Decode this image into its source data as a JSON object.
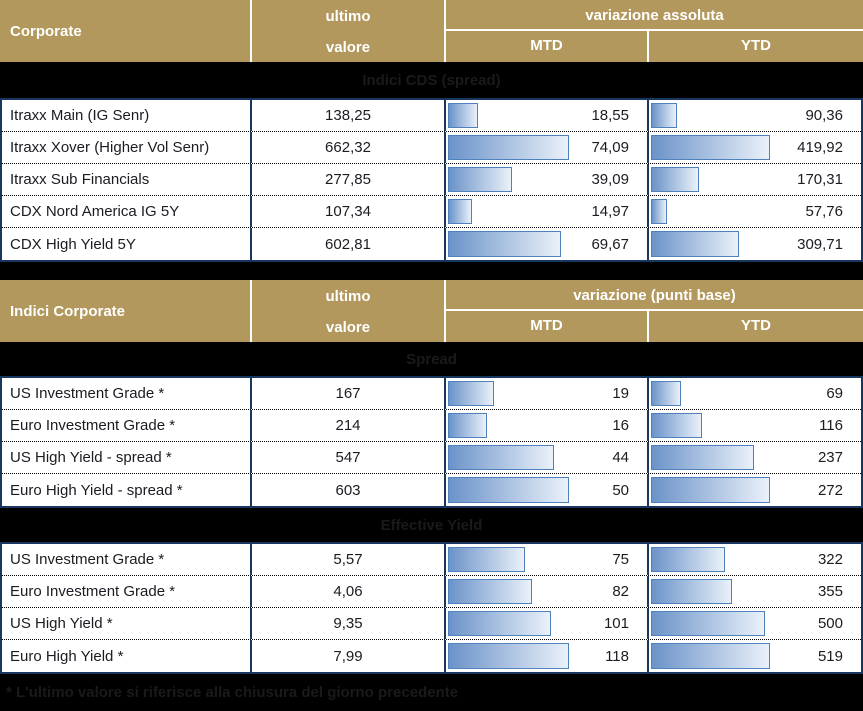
{
  "header1": {
    "title": "Corporate",
    "value_line1": "ultimo",
    "value_line2": "valore",
    "variation": "variazione assoluta",
    "mtd": "MTD",
    "ytd": "YTD"
  },
  "header2": {
    "title": "Indici Corporate",
    "value_line1": "ultimo",
    "value_line2": "valore",
    "variation": "variazione (punti base)",
    "mtd": "MTD",
    "ytd": "YTD"
  },
  "bands": {
    "cds": "Indici CDS (spread)",
    "spread": "Spread",
    "yield": "Effective Yield"
  },
  "footnote": "* L'ultimo valore si riferisce alla chiusura del giorno precedente",
  "colors": {
    "gold": "#B2985C",
    "navy": "#17375E",
    "bar-border": "#4F81BD",
    "bar-start": "#6B93C9",
    "bar-end": "#EAF1F9"
  },
  "chart_data": [
    {
      "type": "table",
      "title": "Corporate",
      "section": "Indici CDS (spread)",
      "columns": [
        "ultimo valore",
        "variazione assoluta MTD",
        "variazione assoluta YTD"
      ],
      "rows": [
        {
          "label": "Itraxx Main (IG Senr)",
          "value": "138,25",
          "mtd": "18,55",
          "mtd_num": 18.55,
          "ytd": "90,36",
          "ytd_num": 90.36
        },
        {
          "label": "Itraxx Xover (Higher Vol Senr)",
          "value": "662,32",
          "mtd": "74,09",
          "mtd_num": 74.09,
          "ytd": "419,92",
          "ytd_num": 419.92
        },
        {
          "label": "Itraxx Sub Financials",
          "value": "277,85",
          "mtd": "39,09",
          "mtd_num": 39.09,
          "ytd": "170,31",
          "ytd_num": 170.31
        },
        {
          "label": "CDX Nord America IG 5Y",
          "value": "107,34",
          "mtd": "14,97",
          "mtd_num": 14.97,
          "ytd": "57,76",
          "ytd_num": 57.76
        },
        {
          "label": "CDX High Yield 5Y",
          "value": "602,81",
          "mtd": "69,67",
          "mtd_num": 69.67,
          "ytd": "309,71",
          "ytd_num": 309.71
        }
      ]
    },
    {
      "type": "table",
      "title": "Indici Corporate",
      "section": "Spread",
      "columns": [
        "ultimo valore",
        "variazione (punti base) MTD",
        "variazione (punti base) YTD"
      ],
      "rows": [
        {
          "label": "US Investment Grade *",
          "value": "167",
          "mtd": "19",
          "mtd_num": 19,
          "ytd": "69",
          "ytd_num": 69
        },
        {
          "label": "Euro Investment Grade *",
          "value": "214",
          "mtd": "16",
          "mtd_num": 16,
          "ytd": "116",
          "ytd_num": 116
        },
        {
          "label": "US High Yield  - spread *",
          "value": "547",
          "mtd": "44",
          "mtd_num": 44,
          "ytd": "237",
          "ytd_num": 237
        },
        {
          "label": "Euro High Yield  - spread *",
          "value": "603",
          "mtd": "50",
          "mtd_num": 50,
          "ytd": "272",
          "ytd_num": 272
        }
      ]
    },
    {
      "type": "table",
      "title": "Indici Corporate",
      "section": "Effective Yield",
      "columns": [
        "ultimo valore",
        "variazione (punti base) MTD",
        "variazione (punti base) YTD"
      ],
      "rows": [
        {
          "label": "US Investment Grade *",
          "value": "5,57",
          "mtd": "75",
          "mtd_num": 75,
          "ytd": "322",
          "ytd_num": 322
        },
        {
          "label": "Euro Investment Grade *",
          "value": "4,06",
          "mtd": "82",
          "mtd_num": 82,
          "ytd": "355",
          "ytd_num": 355
        },
        {
          "label": "US High Yield *",
          "value": "9,35",
          "mtd": "101",
          "mtd_num": 101,
          "ytd": "500",
          "ytd_num": 500
        },
        {
          "label": "Euro High Yield *",
          "value": "7,99",
          "mtd": "118",
          "mtd_num": 118,
          "ytd": "519",
          "ytd_num": 519
        }
      ]
    }
  ]
}
